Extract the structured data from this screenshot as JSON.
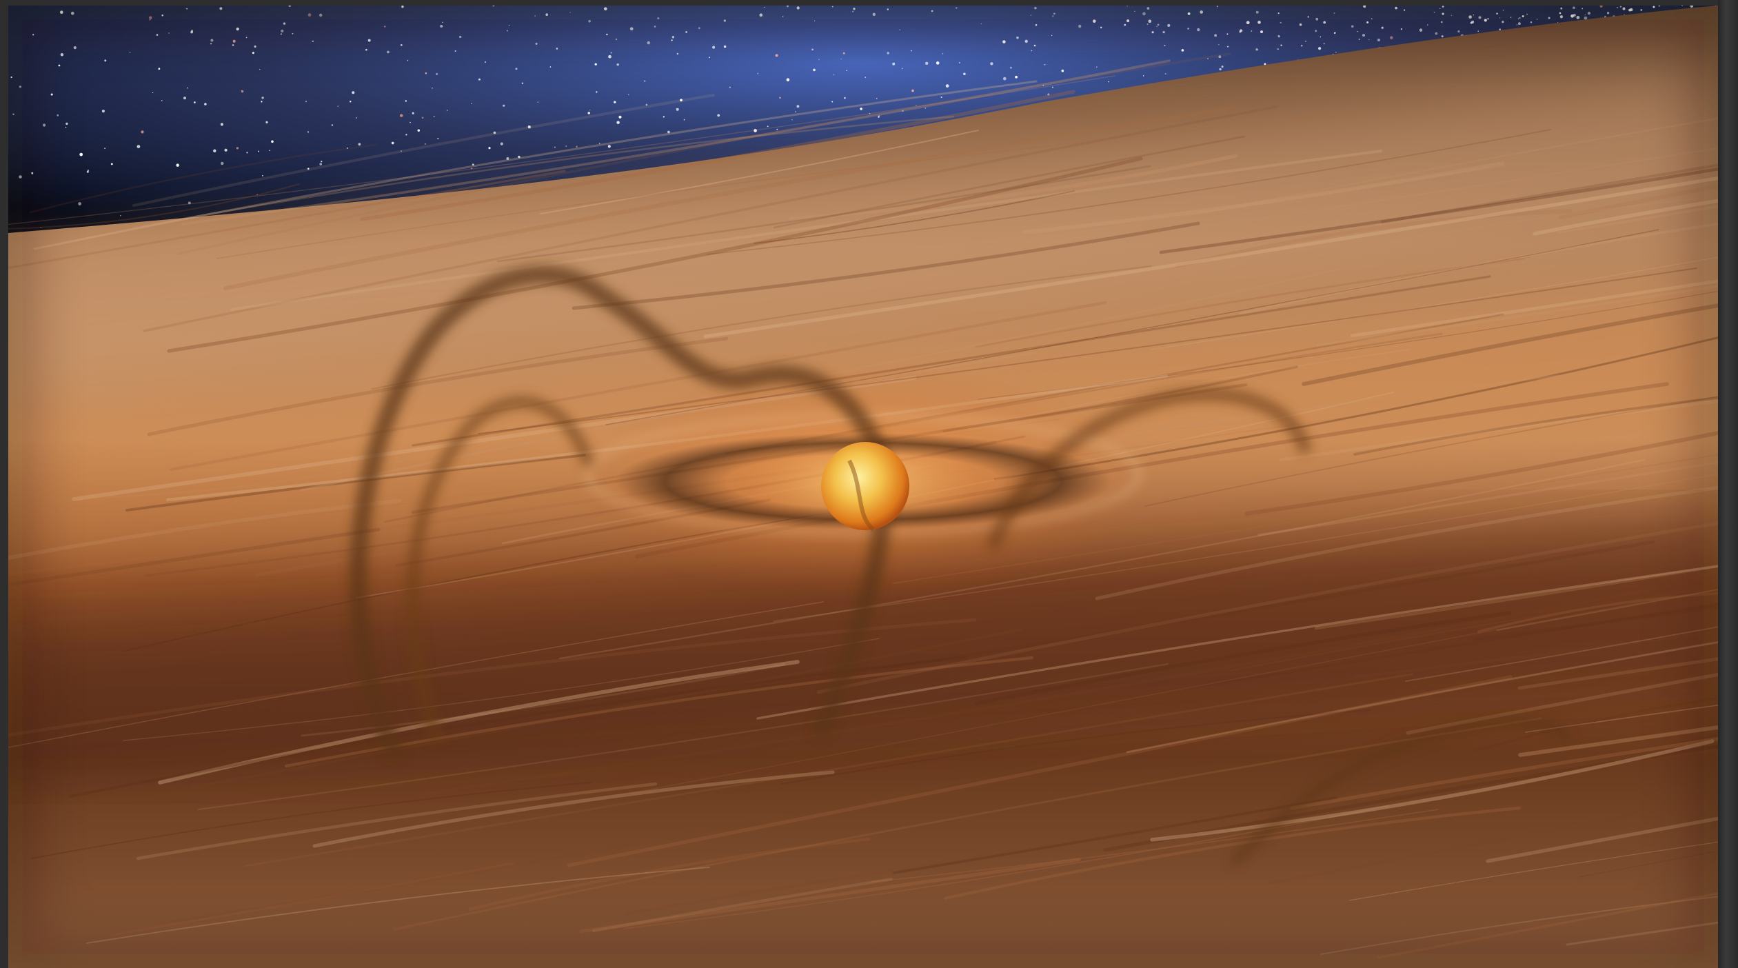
{
  "image": {
    "subject": "",
    "palette": {
      "space": "#0b1220",
      "nebula": "#2f4ea8",
      "dust_light": "#c79366",
      "dust_mid": "#8a5130",
      "dust_dark": "#3a2012",
      "star_core": "#ffd35a",
      "star_edge": "#e07a1a"
    }
  }
}
